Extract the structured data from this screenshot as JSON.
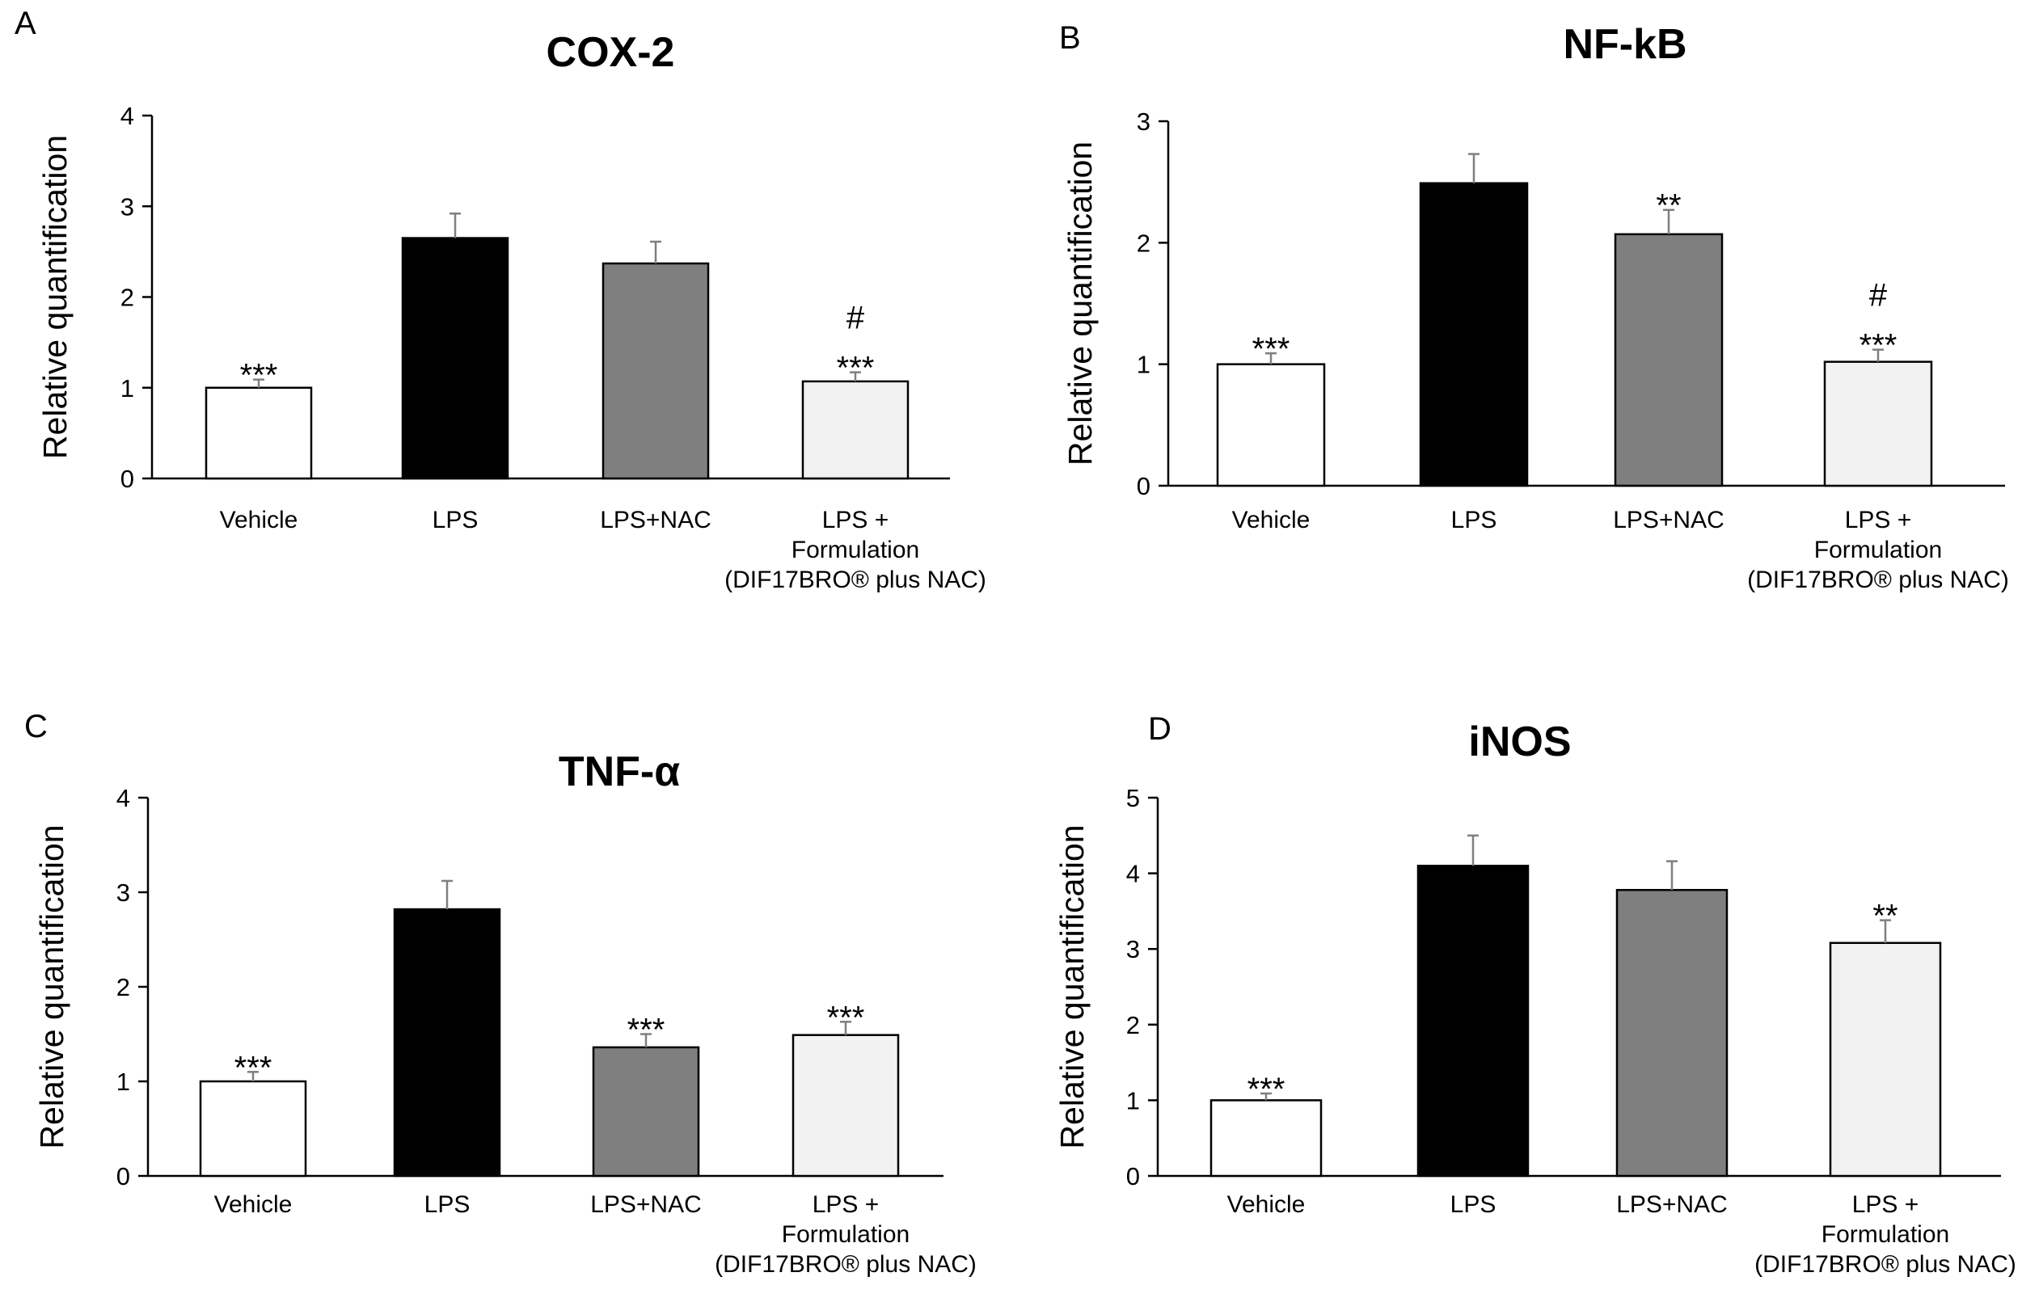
{
  "colors": {
    "Vehicle": "#ffffff",
    "LPS": "#000000",
    "LPS+NAC": "#7f7f7f",
    "Formulation": "#f2f2f2",
    "error_bar": "#7f7f7f",
    "axis": "#000000"
  },
  "chart_data": [
    {
      "panel": "A",
      "type": "bar",
      "title": "COX-2",
      "ylabel": "Relative quantification",
      "xlabel": "",
      "ylim": [
        0,
        4
      ],
      "yticks": [
        0,
        1,
        2,
        3,
        4
      ],
      "categories": [
        [
          "Vehicle"
        ],
        [
          "LPS"
        ],
        [
          "LPS+NAC"
        ],
        [
          "LPS +",
          "Formulation",
          "(DIF17BRO® plus NAC)"
        ]
      ],
      "values": [
        1.0,
        2.65,
        2.37,
        1.07
      ],
      "errors": [
        0.09,
        0.27,
        0.24,
        0.1
      ],
      "significance": [
        [
          "***"
        ],
        [],
        [],
        [
          "***",
          "#"
        ]
      ]
    },
    {
      "panel": "B",
      "type": "bar",
      "title": "NF-kB",
      "ylabel": "Relative quantification",
      "xlabel": "",
      "ylim": [
        0,
        3
      ],
      "yticks": [
        0,
        1,
        2,
        3
      ],
      "categories": [
        [
          "Vehicle"
        ],
        [
          "LPS"
        ],
        [
          "LPS+NAC"
        ],
        [
          "LPS +",
          "Formulation",
          "(DIF17BRO® plus NAC)"
        ]
      ],
      "values": [
        1.0,
        2.49,
        2.07,
        1.02
      ],
      "errors": [
        0.09,
        0.24,
        0.2,
        0.1
      ],
      "significance": [
        [
          "***"
        ],
        [],
        [
          "**"
        ],
        [
          "***",
          "#"
        ]
      ]
    },
    {
      "panel": "C",
      "type": "bar",
      "title": "TNF-α",
      "ylabel": "Relative quantification",
      "xlabel": "",
      "ylim": [
        0,
        4
      ],
      "yticks": [
        0,
        1,
        2,
        3,
        4
      ],
      "categories": [
        [
          "Vehicle"
        ],
        [
          "LPS"
        ],
        [
          "LPS+NAC"
        ],
        [
          "LPS +",
          "Formulation",
          "(DIF17BRO® plus NAC)"
        ]
      ],
      "values": [
        1.0,
        2.82,
        1.36,
        1.49
      ],
      "errors": [
        0.1,
        0.3,
        0.14,
        0.14
      ],
      "significance": [
        [
          "***"
        ],
        [],
        [
          "***"
        ],
        [
          "***"
        ]
      ]
    },
    {
      "panel": "D",
      "type": "bar",
      "title": "iNOS",
      "ylabel": "Relative quantification",
      "xlabel": "",
      "ylim": [
        0,
        5
      ],
      "yticks": [
        0,
        1,
        2,
        3,
        4,
        5
      ],
      "categories": [
        [
          "Vehicle"
        ],
        [
          "LPS"
        ],
        [
          "LPS+NAC"
        ],
        [
          "LPS +",
          "Formulation",
          "(DIF17BRO® plus NAC)"
        ]
      ],
      "values": [
        1.0,
        4.1,
        3.78,
        3.08
      ],
      "errors": [
        0.09,
        0.4,
        0.38,
        0.3
      ],
      "significance": [
        [
          "***"
        ],
        [],
        [],
        [
          "**"
        ]
      ]
    }
  ]
}
